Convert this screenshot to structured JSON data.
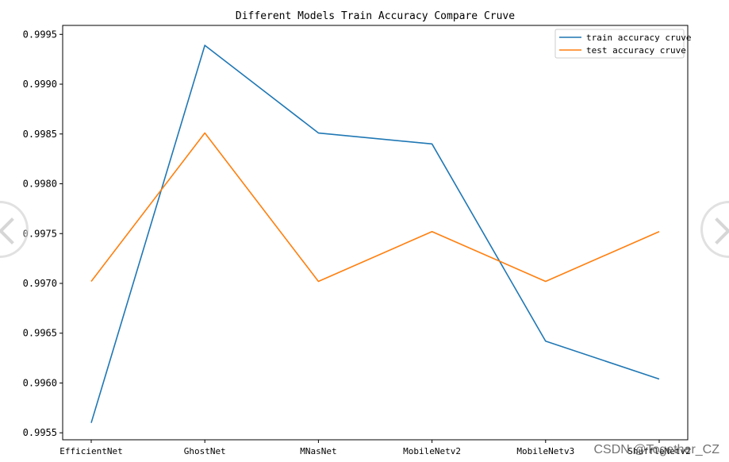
{
  "chart_data": {
    "type": "line",
    "title": "Different Models Train Accuracy Compare Cruve",
    "xlabel": "",
    "ylabel": "",
    "categories": [
      "EfficientNet",
      "GhostNet",
      "MNasNet",
      "MobileNetv2",
      "MobileNetv3",
      "ShuffleNetv2"
    ],
    "series": [
      {
        "name": "train accuracy cruve",
        "color": "#1f77b4",
        "values": [
          0.9956,
          0.99939,
          0.99851,
          0.9984,
          0.99642,
          0.99604
        ]
      },
      {
        "name": "test accuracy cruve",
        "color": "#ff7f0e",
        "values": [
          0.99702,
          0.99851,
          0.99702,
          0.99752,
          0.99702,
          0.99752
        ]
      }
    ],
    "ylim": [
      0.99543,
      0.99959
    ],
    "yticks": [
      "0.9955",
      "0.9960",
      "0.9965",
      "0.9970",
      "0.9975",
      "0.9980",
      "0.9985",
      "0.9990",
      "0.9995"
    ],
    "grid": false,
    "legend_position": "upper-right"
  },
  "watermark": {
    "text": "CSDN @Together_CZ"
  }
}
